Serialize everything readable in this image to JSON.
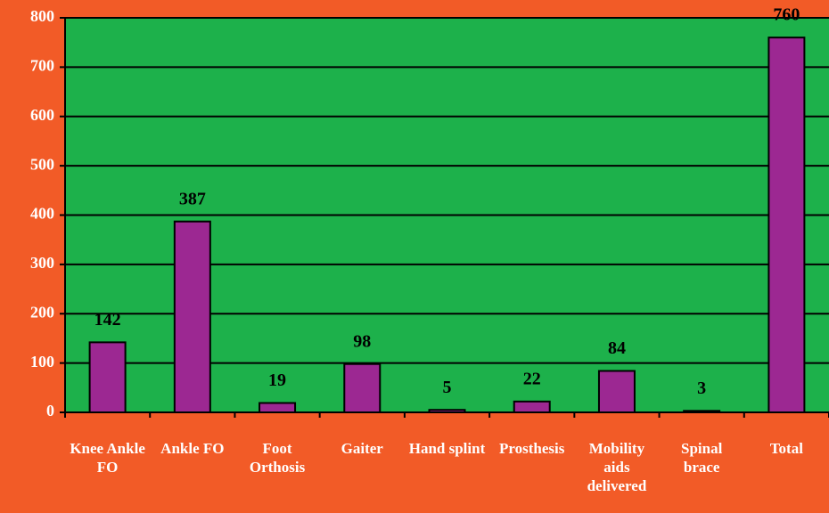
{
  "chart_data": {
    "type": "bar",
    "categories": [
      "Knee Ankle FO",
      "Ankle FO",
      "Foot Orthosis",
      "Gaiter",
      "Hand splint",
      "Prosthesis",
      "Mobility aids delivered",
      "Spinal brace",
      "Total"
    ],
    "values": [
      142,
      387,
      19,
      98,
      5,
      22,
      84,
      3,
      760
    ],
    "color": "#9c2892",
    "ylim": [
      0,
      800
    ],
    "yticks": [
      0,
      100,
      200,
      300,
      400,
      500,
      600,
      700,
      800
    ],
    "grid": true
  }
}
